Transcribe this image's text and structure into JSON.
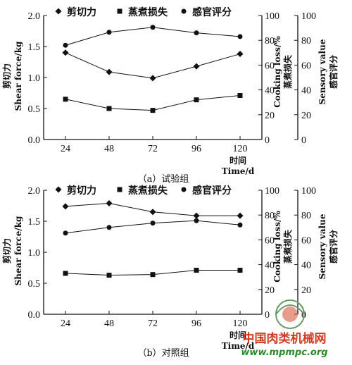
{
  "legend": {
    "shear": "剪切力",
    "loss": "蒸煮损失",
    "sensory": "感官评分"
  },
  "watermark": {
    "site": "中国肉类机械网",
    "url": "www.mpmpc.org"
  },
  "chart_data": [
    {
      "type": "line",
      "caption": "（a）试验组",
      "x": [
        24,
        48,
        72,
        96,
        120
      ],
      "xlabel": [
        "时间",
        "Time/d"
      ],
      "ylabel_left": [
        "剪切力",
        "Shear force/kg"
      ],
      "ylabel_right1": [
        "Cooking loss/%",
        "蒸煮损失"
      ],
      "ylabel_right2": [
        "Sensory value",
        "感官评分"
      ],
      "ylim_left": [
        0,
        2.0
      ],
      "ylim_right": [
        0,
        100
      ],
      "yticks_left": [
        "0.0",
        "0.5",
        "1.0",
        "1.5",
        "2.0"
      ],
      "yticks_right": [
        "0",
        "20",
        "40",
        "60",
        "80",
        "100"
      ],
      "series": [
        {
          "name": "剪切力",
          "marker": "diamond",
          "axis": "left",
          "values": [
            1.4,
            1.09,
            0.99,
            1.18,
            1.38
          ]
        },
        {
          "name": "蒸煮损失",
          "marker": "square",
          "axis": "right",
          "values": [
            32.5,
            25,
            23.5,
            32,
            35.5
          ]
        },
        {
          "name": "感官评分",
          "marker": "dot",
          "axis": "right",
          "values": [
            76,
            86.5,
            90.5,
            86,
            83
          ]
        }
      ]
    },
    {
      "type": "line",
      "caption": "（b）对照组",
      "x": [
        24,
        48,
        72,
        96,
        120
      ],
      "xlabel": [
        "时间",
        "Time/d"
      ],
      "ylabel_left": [
        "剪切力",
        "Shear force/kg"
      ],
      "ylabel_right1": [
        "Cooking loss/%",
        "蒸煮损失"
      ],
      "ylabel_right2": [
        "Sensory value",
        "感官评分"
      ],
      "ylim_left": [
        0,
        2.0
      ],
      "ylim_right": [
        0,
        100
      ],
      "yticks_left": [
        "0.0",
        "0.5",
        "1.0",
        "1.5",
        "2.0"
      ],
      "yticks_right": [
        "0",
        "20",
        "40",
        "60",
        "80",
        "100"
      ],
      "series": [
        {
          "name": "剪切力",
          "marker": "diamond",
          "axis": "left",
          "values": [
            1.74,
            1.79,
            1.65,
            1.59,
            1.59
          ]
        },
        {
          "name": "蒸煮损失",
          "marker": "square",
          "axis": "right",
          "values": [
            33,
            31.5,
            32,
            35.5,
            35.5
          ]
        },
        {
          "name": "感官评分",
          "marker": "dot",
          "axis": "right",
          "values": [
            65.5,
            70,
            73.5,
            75.5,
            72
          ]
        }
      ]
    }
  ]
}
